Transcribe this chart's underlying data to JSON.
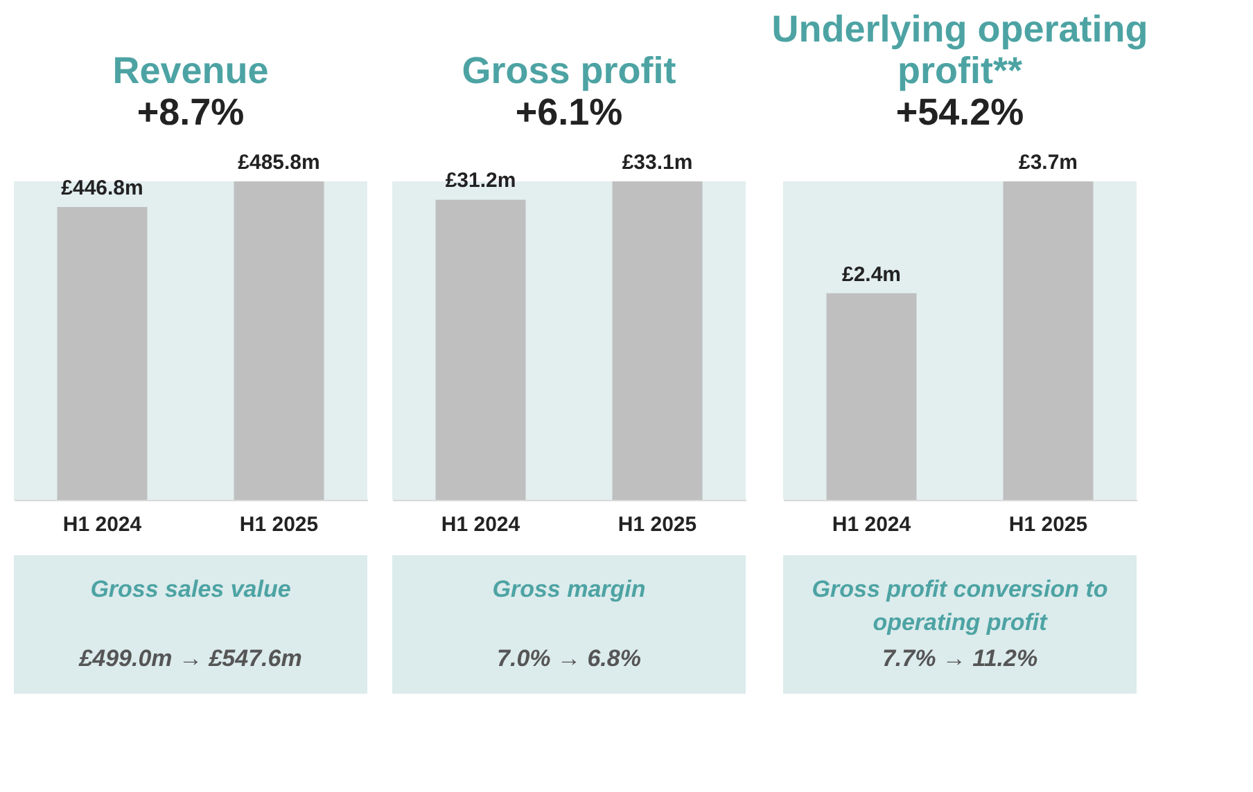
{
  "chart_data": [
    {
      "type": "bar",
      "title": "Revenue",
      "subtitle": "+8.7%",
      "categories": [
        "H1 2024",
        "H1 2025"
      ],
      "values": [
        446.8,
        485.8
      ],
      "value_labels": [
        "£446.8m",
        "£485.8m"
      ],
      "color": "#bfbfbf",
      "annotations": [
        "Gross sales value",
        "£499.0m → £547.6m"
      ]
    },
    {
      "type": "bar",
      "title": "Gross profit",
      "subtitle": "+6.1%",
      "categories": [
        "H1 2024",
        "H1 2025"
      ],
      "values": [
        31.2,
        33.1
      ],
      "value_labels": [
        "£31.2m",
        "£33.1m"
      ],
      "color": "#bfbfbf",
      "annotations": [
        "Gross margin",
        "7.0% → 6.8%"
      ]
    },
    {
      "type": "bar",
      "title": "Underlying operating profit**",
      "subtitle": "+54.2%",
      "categories": [
        "H1 2024",
        "H1 2025"
      ],
      "values": [
        2.4,
        3.7
      ],
      "value_labels": [
        "£2.4m",
        "£3.7m"
      ],
      "color": "#bfbfbf",
      "annotations": [
        "Gross profit conversion to operating profit",
        "7.7% → 11.2%"
      ]
    }
  ]
}
